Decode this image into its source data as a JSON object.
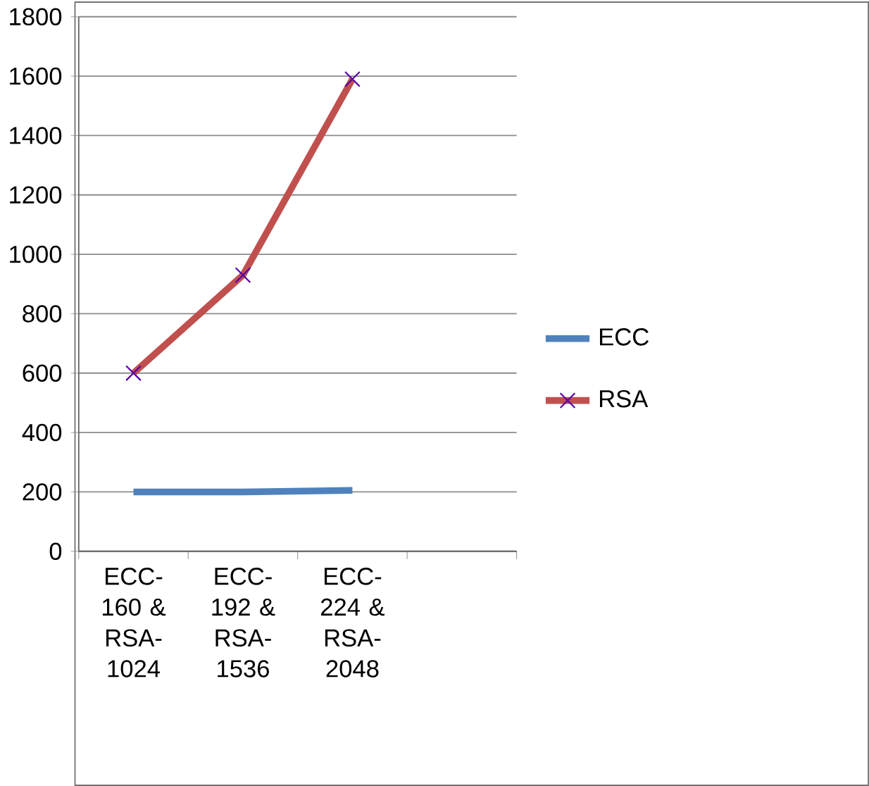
{
  "chart_data": {
    "type": "line",
    "categories": [
      "ECC-160 & RSA-1024",
      "ECC-192 & RSA-1536",
      "ECC-224 & RSA-2048",
      null
    ],
    "series": [
      {
        "name": "ECC",
        "color": "#4f81bd",
        "values": [
          200,
          200,
          205,
          null
        ],
        "marker": "none"
      },
      {
        "name": "RSA",
        "color": "#c0504d",
        "values": [
          600,
          930,
          1590,
          null
        ],
        "marker": "cross"
      }
    ],
    "ylim": [
      0,
      1800
    ],
    "yticks": [
      0,
      200,
      400,
      600,
      800,
      1000,
      1200,
      1400,
      1600,
      1800
    ],
    "grid": "y",
    "legend": "right",
    "line_style": "solid"
  }
}
